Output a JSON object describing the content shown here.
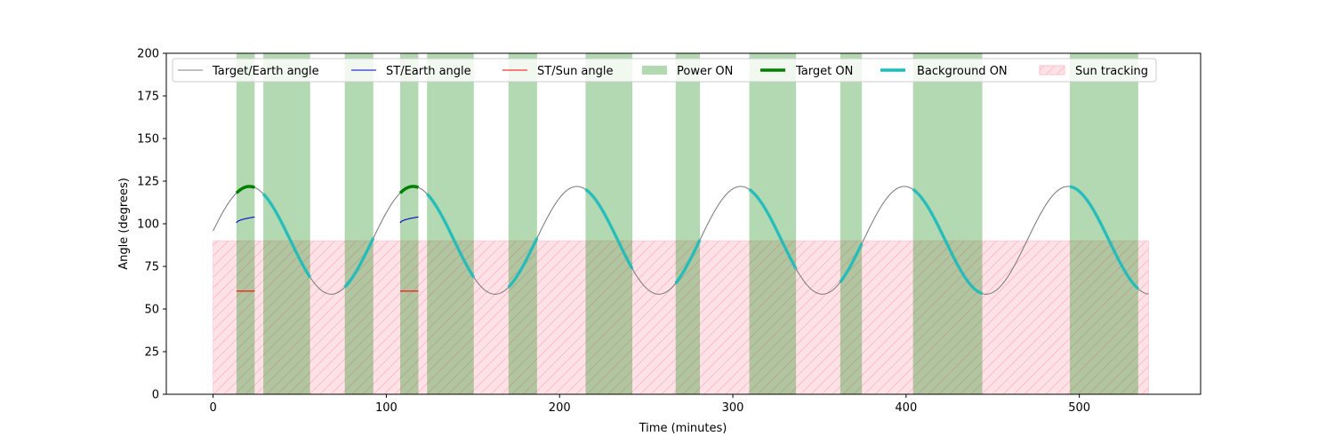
{
  "chart_data": {
    "type": "line",
    "xlabel": "Time (minutes)",
    "ylabel": "Angle (degrees)",
    "xlim": [
      -27,
      570
    ],
    "ylim": [
      0,
      200
    ],
    "x_ticks": [
      0,
      100,
      200,
      300,
      400,
      500
    ],
    "y_ticks": [
      0,
      25,
      50,
      75,
      100,
      125,
      150,
      175,
      200
    ],
    "grid": false,
    "legend_position": "top",
    "target_earth_angle": {
      "description_model": "sinusoid",
      "period_minutes": 94.5,
      "mean": 90.3,
      "amplitude": 31.6,
      "peak_times": [
        21,
        115.5,
        210,
        304.5,
        399,
        493.5
      ],
      "x_range": [
        0,
        540
      ],
      "samples_x": [
        0,
        10,
        21,
        30,
        40,
        50,
        60,
        68.25,
        75,
        85,
        95,
        105,
        115.5,
        125,
        135,
        145,
        155,
        162.75,
        170,
        180,
        190,
        200,
        210,
        220,
        230,
        240,
        250,
        257.25,
        265,
        275,
        285,
        295,
        304.5,
        315,
        325,
        335,
        345,
        351.75,
        360,
        370,
        380,
        390,
        399,
        410,
        420,
        430,
        440,
        446.25,
        455,
        465,
        475,
        485,
        493.5,
        505,
        515,
        525,
        535,
        540
      ],
      "samples_y": [
        93.5,
        111,
        121.9,
        118,
        104.5,
        86.2,
        68.8,
        58.7,
        60.4,
        70.2,
        88.1,
        106.5,
        121.9,
        118.5,
        104.5,
        86.2,
        68.9,
        58.7,
        61,
        72.5,
        90.5,
        108.6,
        121.9,
        117.8,
        104.8,
        86.5,
        69.1,
        58.7,
        60.5,
        70.6,
        88.4,
        106.3,
        121.9,
        117.1,
        103.8,
        85.5,
        68.3,
        58.7,
        61,
        72.1,
        90.4,
        108.3,
        121.9,
        116.4,
        103.1,
        84.8,
        67.6,
        58.7,
        61.8,
        73.8,
        91.9,
        110,
        121.9,
        115.8,
        102.2,
        83.9,
        65.2,
        58.7
      ]
    },
    "st_earth_angle": {
      "segments": [
        {
          "x": [
            13.5,
            24
          ],
          "y": [
            100.5,
            104
          ]
        },
        {
          "x": [
            108,
            118.5
          ],
          "y": [
            100.5,
            104
          ]
        }
      ]
    },
    "st_sun_angle": {
      "segments": [
        {
          "x": [
            13.5,
            24
          ],
          "y": [
            60.5,
            60.5
          ]
        },
        {
          "x": [
            108,
            118.5
          ],
          "y": [
            60.5,
            60.5
          ]
        }
      ]
    },
    "power_on_intervals": [
      [
        13.5,
        24
      ],
      [
        29,
        56
      ],
      [
        76,
        92.5
      ],
      [
        108,
        118.5
      ],
      [
        123.5,
        150.5
      ],
      [
        170.5,
        187
      ],
      [
        215,
        242
      ],
      [
        267,
        281
      ],
      [
        309.5,
        336.5
      ],
      [
        362,
        374.5
      ],
      [
        404,
        444
      ],
      [
        494.5,
        534
      ]
    ],
    "target_on_intervals": [
      [
        13.5,
        24
      ],
      [
        108,
        118.5
      ]
    ],
    "background_on_intervals": [
      [
        29,
        56
      ],
      [
        76,
        92.5
      ],
      [
        123.5,
        150.5
      ],
      [
        170.5,
        187
      ],
      [
        215,
        242
      ],
      [
        267,
        281
      ],
      [
        309.5,
        336.5
      ],
      [
        362,
        374.5
      ],
      [
        404,
        444
      ],
      [
        494.5,
        534
      ]
    ],
    "sun_tracking": {
      "x_range": [
        0,
        540
      ],
      "y_range": [
        0,
        90
      ]
    },
    "series": [
      {
        "name": "Target/Earth angle",
        "color": "#808080",
        "style": "thin-line"
      },
      {
        "name": "ST/Earth angle",
        "color": "#0000cc",
        "style": "thin-line"
      },
      {
        "name": "ST/Sun angle",
        "color": "#ff0000",
        "style": "thin-line"
      },
      {
        "name": "Power ON",
        "color": "#008000",
        "style": "span"
      },
      {
        "name": "Target ON",
        "color": "#008000",
        "style": "thick-line"
      },
      {
        "name": "Background ON",
        "color": "#17bebe",
        "style": "thick-line"
      },
      {
        "name": "Sun tracking",
        "color": "#ffc0cb",
        "style": "hatched-fill"
      }
    ]
  }
}
